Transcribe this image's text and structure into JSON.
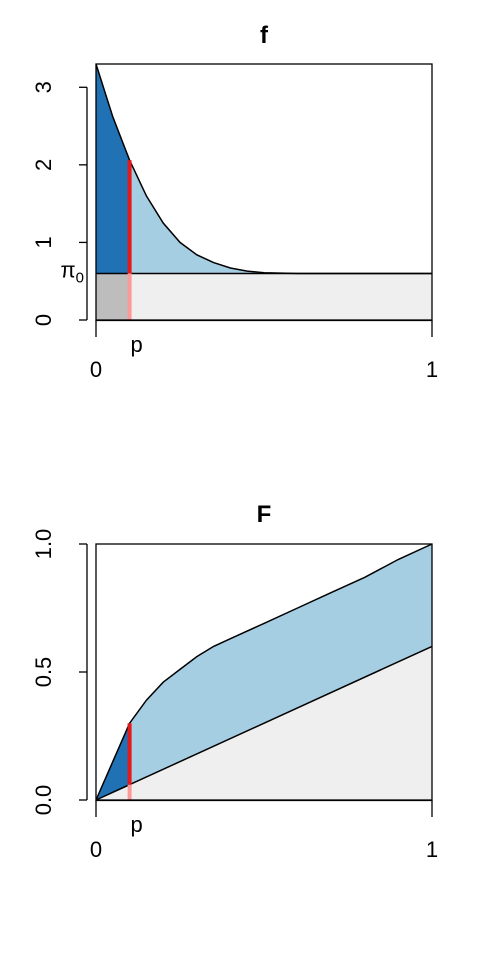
{
  "colors": {
    "dark_blue": "#2171b5",
    "light_blue": "#a6cee3",
    "background_fill": "#efefef",
    "gray_fill": "#bdbdbd",
    "red_line": "#e31a1c",
    "pink_line": "#fb9a99",
    "frame": "#000000"
  },
  "chart_data": [
    {
      "type": "area",
      "title": "f",
      "xlabel": "",
      "ylabel": "",
      "xlim": [
        0,
        1
      ],
      "ylim": [
        0,
        3.3
      ],
      "x_ticks": [
        {
          "value": 0,
          "label": "0"
        },
        {
          "value": 1,
          "label": "1"
        }
      ],
      "y_ticks": [
        {
          "value": 0,
          "label": "0"
        },
        {
          "value": 1,
          "label": "1"
        },
        {
          "value": 2,
          "label": "2"
        },
        {
          "value": 3,
          "label": "3"
        }
      ],
      "pi0": 0.6,
      "pi0_label_main": "π",
      "pi0_label_sub": "0",
      "p": 0.1,
      "p_label": "p",
      "density_curve": {
        "x": [
          0,
          0.05,
          0.1,
          0.15,
          0.2,
          0.25,
          0.3,
          0.35,
          0.4,
          0.45,
          0.5,
          0.55,
          0.6,
          0.65,
          0.7,
          1.0
        ],
        "y": [
          3.3,
          2.62,
          2.06,
          1.6,
          1.25,
          1.0,
          0.84,
          0.74,
          0.67,
          0.63,
          0.61,
          0.605,
          0.6,
          0.6,
          0.6,
          0.6
        ]
      }
    },
    {
      "type": "area",
      "title": "F",
      "xlabel": "",
      "ylabel": "",
      "xlim": [
        0,
        1
      ],
      "ylim": [
        0,
        1
      ],
      "x_ticks": [
        {
          "value": 0,
          "label": "0"
        },
        {
          "value": 1,
          "label": "1"
        }
      ],
      "y_ticks": [
        {
          "value": 0,
          "label": "0.0"
        },
        {
          "value": 0.5,
          "label": "0.5"
        },
        {
          "value": 1,
          "label": "1.0"
        }
      ],
      "p": 0.1,
      "p_label": "p",
      "lower_line": {
        "x": [
          0,
          1
        ],
        "y": [
          0,
          0.6
        ]
      },
      "cdf_curve": {
        "x": [
          0,
          0.05,
          0.1,
          0.15,
          0.2,
          0.25,
          0.3,
          0.35,
          0.4,
          0.5,
          0.6,
          0.7,
          0.8,
          0.9,
          1.0
        ],
        "y": [
          0,
          0.15,
          0.3,
          0.39,
          0.46,
          0.51,
          0.56,
          0.6,
          0.63,
          0.69,
          0.75,
          0.81,
          0.87,
          0.94,
          1.0
        ]
      }
    }
  ]
}
